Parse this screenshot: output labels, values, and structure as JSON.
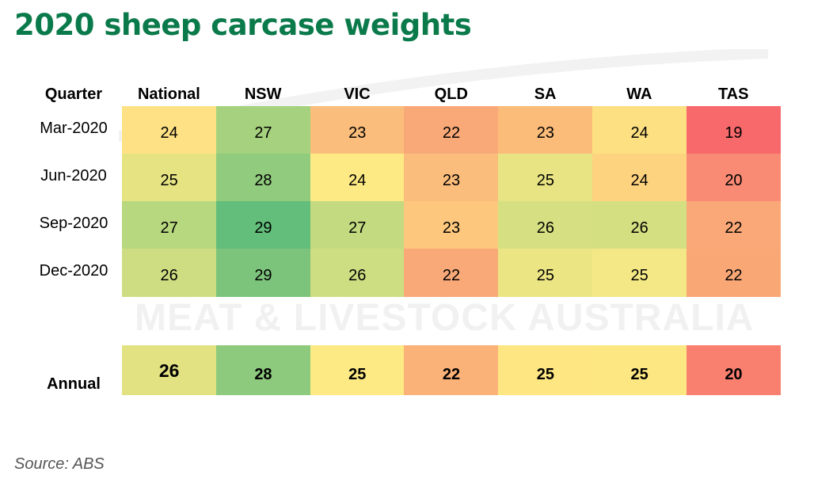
{
  "title": "2020 sheep carcase weights",
  "watermark": "MEAT & LIVESTOCK AUSTRALIA",
  "source": "Source: ABS",
  "chart_data": {
    "type": "heatmap",
    "title": "2020 sheep carcase weights",
    "row_header": "Quarter",
    "columns": [
      "National",
      "NSW",
      "VIC",
      "QLD",
      "SA",
      "WA",
      "TAS"
    ],
    "rows": [
      {
        "label": "Mar-2020",
        "values": [
          24,
          27,
          23,
          22,
          23,
          24,
          19
        ],
        "colors": [
          "#fde184",
          "#a6d27f",
          "#fbbd7b",
          "#f9a978",
          "#fbbc7a",
          "#fde082",
          "#f8696b"
        ]
      },
      {
        "label": "Jun-2020",
        "values": [
          25,
          28,
          24,
          23,
          25,
          24,
          20
        ],
        "colors": [
          "#e6e383",
          "#91cb7e",
          "#feea84",
          "#fbbd7b",
          "#e8e483",
          "#fed380",
          "#f98a73"
        ]
      },
      {
        "label": "Sep-2020",
        "values": [
          27,
          29,
          27,
          23,
          26,
          26,
          22
        ],
        "colors": [
          "#b8d880",
          "#63be7b",
          "#c3da81",
          "#fdc87d",
          "#d6e082",
          "#d4df82",
          "#faa877"
        ]
      },
      {
        "label": "Dec-2020",
        "values": [
          26,
          29,
          26,
          22,
          25,
          25,
          22
        ],
        "colors": [
          "#cfdd82",
          "#7cc47c",
          "#cddd82",
          "#f9a978",
          "#ece584",
          "#f3e885",
          "#faa776"
        ]
      }
    ],
    "annual": {
      "label": "Annual",
      "values": [
        26,
        28,
        25,
        22,
        25,
        25,
        20
      ],
      "colors": [
        "#e3e283",
        "#8dca7e",
        "#feea84",
        "#fbb279",
        "#fee683",
        "#fde783",
        "#f97f6f"
      ]
    }
  }
}
